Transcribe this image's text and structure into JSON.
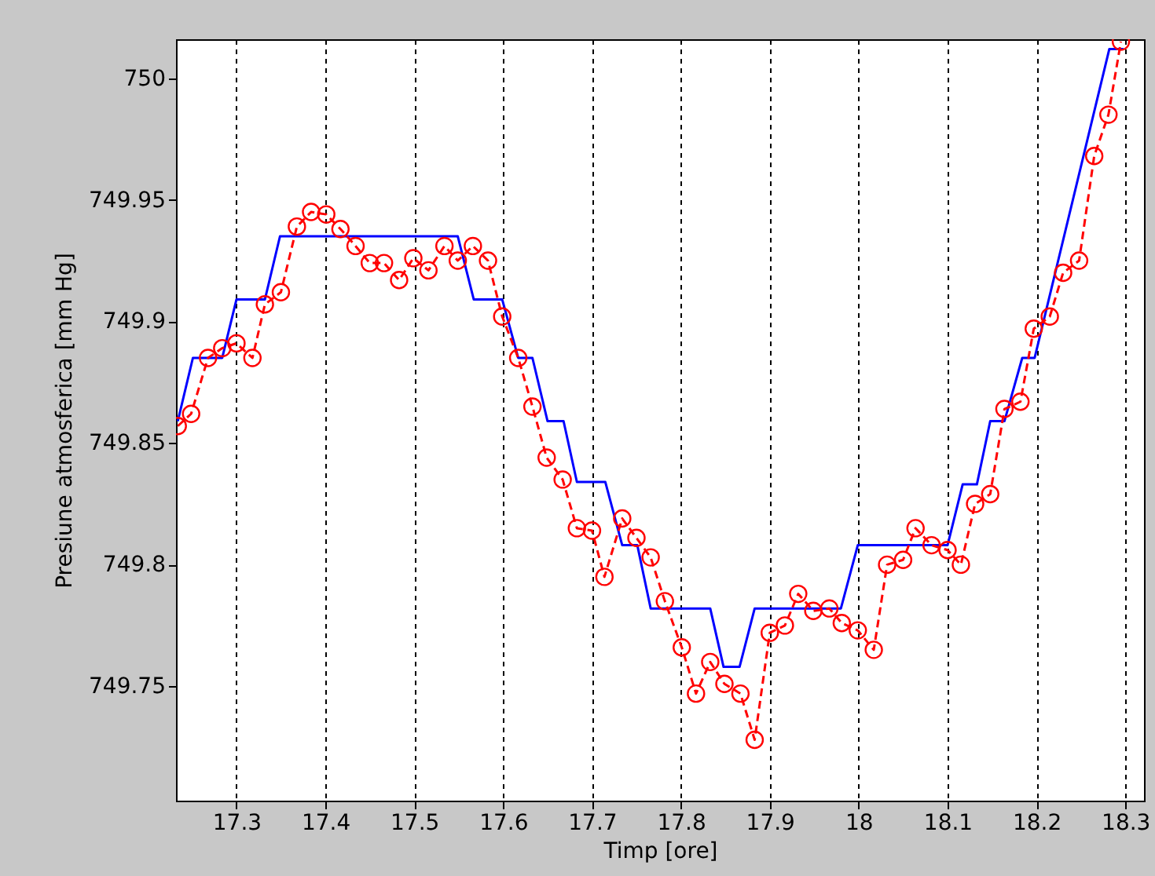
{
  "chart_data": {
    "type": "line",
    "xlabel": "Timp [ore]",
    "ylabel": "Presiune atmosferica [mm Hg]",
    "xlim": [
      17.232,
      18.321
    ],
    "ylim": [
      749.703,
      750.016
    ],
    "xticks": [
      17.3,
      17.4,
      17.5,
      17.6,
      17.7,
      17.8,
      17.9,
      18,
      18.1,
      18.2,
      18.3
    ],
    "yticks": [
      749.75,
      749.8,
      749.85,
      749.9,
      749.95,
      750
    ],
    "grid": "x",
    "series": [
      {
        "color": "#0000ff",
        "line_style": "solid",
        "marker": "none",
        "x": [
          17.234,
          17.251,
          17.284,
          17.3,
          17.332,
          17.349,
          17.549,
          17.567,
          17.599,
          17.617,
          17.633,
          17.65,
          17.668,
          17.683,
          17.715,
          17.734,
          17.751,
          17.766,
          17.833,
          17.848,
          17.866,
          17.883,
          17.98,
          17.999,
          18.1,
          18.117,
          18.133,
          18.148,
          18.164,
          18.184,
          18.198,
          18.282,
          18.298
        ],
        "values": [
          749.859,
          749.885,
          749.885,
          749.909,
          749.909,
          749.935,
          749.935,
          749.909,
          749.909,
          749.885,
          749.885,
          749.859,
          749.859,
          749.834,
          749.834,
          749.808,
          749.808,
          749.782,
          749.782,
          749.758,
          749.758,
          749.782,
          749.782,
          749.808,
          749.808,
          749.833,
          749.833,
          749.859,
          749.859,
          749.885,
          749.885,
          750.012,
          750.012
        ]
      },
      {
        "color": "#ff0000",
        "line_style": "dashed",
        "marker": "circle",
        "x": [
          17.234,
          17.249,
          17.268,
          17.284,
          17.3,
          17.318,
          17.332,
          17.35,
          17.368,
          17.384,
          17.401,
          17.417,
          17.434,
          17.45,
          17.466,
          17.483,
          17.499,
          17.516,
          17.534,
          17.549,
          17.566,
          17.583,
          17.599,
          17.617,
          17.633,
          17.649,
          17.667,
          17.683,
          17.7,
          17.714,
          17.734,
          17.75,
          17.766,
          17.782,
          17.801,
          17.817,
          17.833,
          17.849,
          17.867,
          17.883,
          17.9,
          17.917,
          17.932,
          17.949,
          17.967,
          17.981,
          17.999,
          18.017,
          18.032,
          18.05,
          18.064,
          18.082,
          18.1,
          18.115,
          18.131,
          18.148,
          18.164,
          18.182,
          18.197,
          18.215,
          18.23,
          18.248,
          18.265,
          18.281,
          18.295
        ],
        "values": [
          749.857,
          749.862,
          749.885,
          749.889,
          749.891,
          749.885,
          749.907,
          749.912,
          749.939,
          749.945,
          749.944,
          749.938,
          749.931,
          749.924,
          749.924,
          749.917,
          749.926,
          749.921,
          749.931,
          749.925,
          749.931,
          749.925,
          749.902,
          749.885,
          749.865,
          749.844,
          749.835,
          749.815,
          749.814,
          749.795,
          749.819,
          749.811,
          749.803,
          749.785,
          749.766,
          749.747,
          749.76,
          749.751,
          749.747,
          749.728,
          749.772,
          749.775,
          749.788,
          749.781,
          749.782,
          749.776,
          749.773,
          749.765,
          749.8,
          749.802,
          749.815,
          749.808,
          749.806,
          749.8,
          749.825,
          749.829,
          749.864,
          749.867,
          749.897,
          749.902,
          749.92,
          749.925,
          749.968,
          749.985,
          750.015
        ]
      }
    ]
  }
}
